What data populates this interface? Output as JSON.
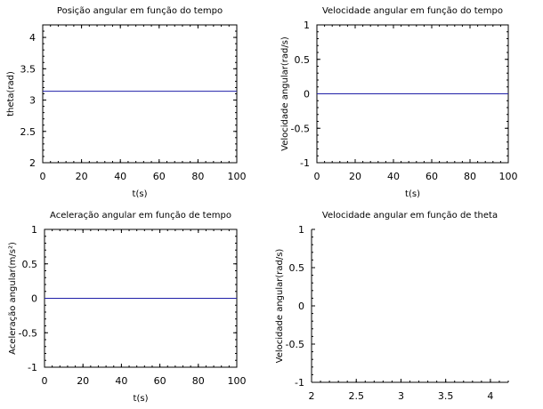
{
  "chart_data": [
    {
      "type": "line",
      "title": "Posição angular em função do tempo",
      "xlabel": "t(s)",
      "ylabel": "theta(rad)",
      "xlim": [
        0,
        100
      ],
      "ylim": [
        2,
        4.2
      ],
      "xticks": [
        0,
        20,
        40,
        60,
        80,
        100
      ],
      "xtick_labels": [
        "0",
        "20",
        "40",
        "60",
        "80",
        "100"
      ],
      "yticks": [
        2,
        2.5,
        3,
        3.5,
        4
      ],
      "ytick_labels": [
        "2",
        "2.5",
        "3",
        "3.5",
        "4"
      ],
      "grid": false,
      "series": [
        {
          "x": [
            0,
            100
          ],
          "y": [
            3.1416,
            3.1416
          ],
          "color": "#1f1fa8"
        }
      ]
    },
    {
      "type": "line",
      "title": "Velocidade angular em função do tempo",
      "xlabel": "t(s)",
      "ylabel": "Velocidade angular(rad/s)",
      "xlim": [
        0,
        100
      ],
      "ylim": [
        -1,
        1
      ],
      "xticks": [
        0,
        20,
        40,
        60,
        80,
        100
      ],
      "xtick_labels": [
        "0",
        "20",
        "40",
        "60",
        "80",
        "100"
      ],
      "yticks": [
        -1,
        -0.5,
        0,
        0.5,
        1
      ],
      "ytick_labels": [
        "-1",
        "-0.5",
        "0",
        "0.5",
        "1"
      ],
      "grid": false,
      "series": [
        {
          "x": [
            0,
            100
          ],
          "y": [
            0,
            0
          ],
          "color": "#1f1fa8"
        }
      ]
    },
    {
      "type": "line",
      "title": "Aceleração angular em função de tempo",
      "xlabel": "t(s)",
      "ylabel": "Aceleração angular(m/s²)",
      "xlim": [
        0,
        100
      ],
      "ylim": [
        -1,
        1
      ],
      "xticks": [
        0,
        20,
        40,
        60,
        80,
        100
      ],
      "xtick_labels": [
        "0",
        "20",
        "40",
        "60",
        "80",
        "100"
      ],
      "yticks": [
        -1,
        -0.5,
        0,
        0.5,
        1
      ],
      "ytick_labels": [
        "-1",
        "-0.5",
        "0",
        "0.5",
        "1"
      ],
      "grid": false,
      "series": [
        {
          "x": [
            0,
            100
          ],
          "y": [
            0,
            0
          ],
          "color": "#1f1fa8"
        }
      ]
    },
    {
      "type": "scatter",
      "title": "Velocidade angular em função de theta",
      "xlabel": "",
      "ylabel": "Velocidade angular(rad/s)",
      "xlim": [
        2,
        4.2
      ],
      "ylim": [
        -1,
        1
      ],
      "xticks": [
        2,
        2.5,
        3,
        3.5,
        4
      ],
      "xtick_labels": [
        "2",
        "2.5",
        "3",
        "3.5",
        "4"
      ],
      "yticks": [
        -1,
        -0.5,
        0,
        0.5,
        1
      ],
      "ytick_labels": [
        "-1",
        "-0.5",
        "0",
        "0.5",
        "1"
      ],
      "grid": false,
      "box": false,
      "series": []
    }
  ]
}
